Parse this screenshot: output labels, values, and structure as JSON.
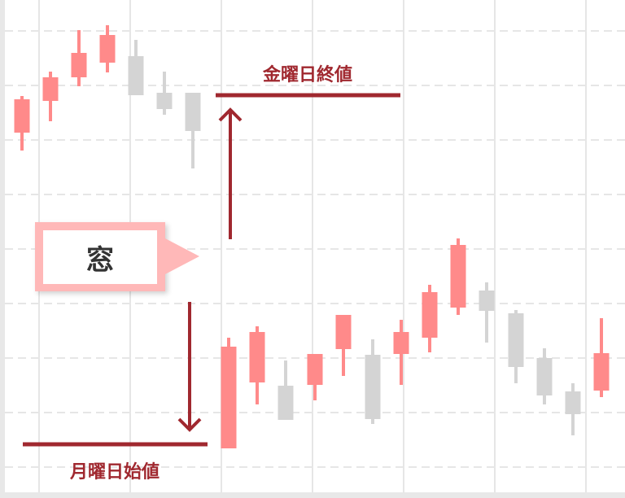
{
  "labels": {
    "friday_close": "金曜日終値",
    "monday_open": "月曜日始値",
    "gap": "窓"
  },
  "colors": {
    "bullish_candle": "#ff8a8a",
    "bearish_candle": "#d4d4d4",
    "annotation": "#a0282f",
    "callout_border": "#ffb8b8",
    "grid": "#e6e6e6"
  },
  "icons": {
    "up_arrow": "arrow-up-icon",
    "down_arrow": "arrow-down-icon"
  }
}
